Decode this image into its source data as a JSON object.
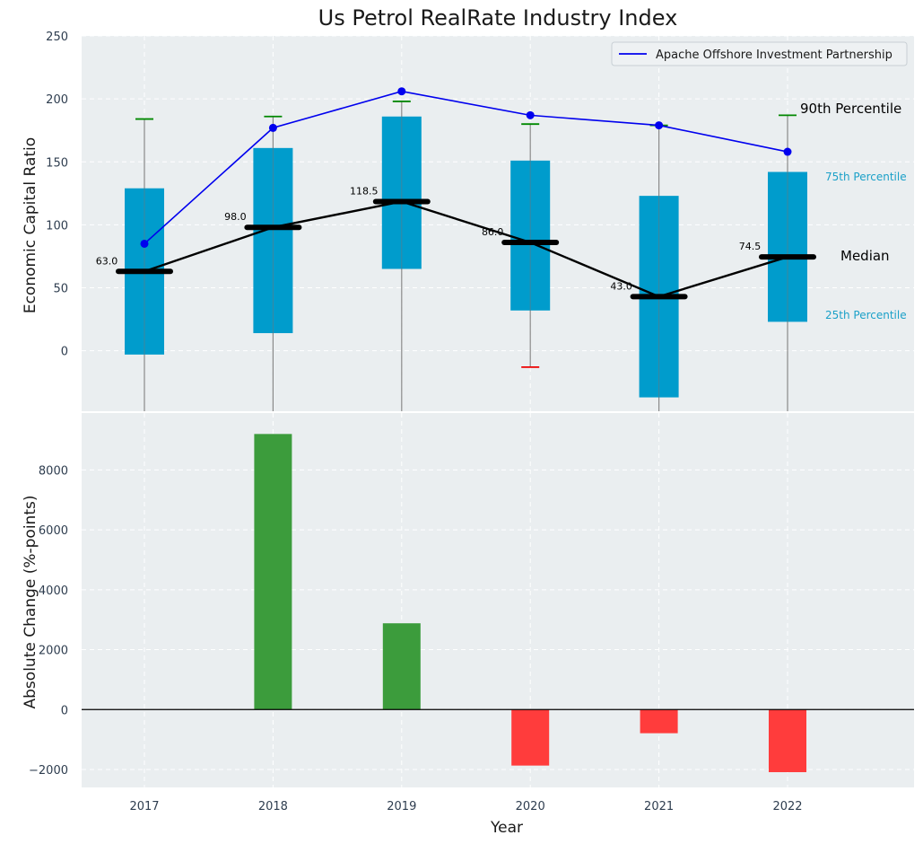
{
  "chart_data": [
    {
      "type": "box",
      "title": "Us Petrol RealRate Industry Index",
      "ylabel": "Economic Capital Ratio",
      "ylim": [
        -48,
        250
      ],
      "yticks": [
        0,
        50,
        100,
        150,
        200,
        250
      ],
      "categories": [
        "2017",
        "2018",
        "2019",
        "2020",
        "2021",
        "2022"
      ],
      "boxes": [
        {
          "q1": -3,
          "median": 63.0,
          "q3": 129,
          "p90": 184,
          "p10": null,
          "median_label": "63.0"
        },
        {
          "q1": 14,
          "median": 98.0,
          "q3": 161,
          "p90": 186,
          "p10": null,
          "median_label": "98.0"
        },
        {
          "q1": 65,
          "median": 118.5,
          "q3": 186,
          "p90": 198,
          "p10": null,
          "median_label": "118.5"
        },
        {
          "q1": 32,
          "median": 86.0,
          "q3": 151,
          "p90": 180,
          "p10": -13,
          "median_label": "86.0"
        },
        {
          "q1": -37,
          "median": 43.0,
          "q3": 123,
          "p90": 179,
          "p10": null,
          "median_label": "43.0"
        },
        {
          "q1": 23,
          "median": 74.5,
          "q3": 142,
          "p90": 187,
          "p10": null,
          "median_label": "74.5"
        }
      ],
      "series": [
        {
          "name": "Apache Offshore Investment Partnership",
          "color": "#0000ee",
          "values": [
            85,
            177,
            206,
            187,
            179,
            158
          ]
        }
      ],
      "annotations": {
        "p90": "90th Percentile",
        "p75": "75th Percentile",
        "median": "Median",
        "p25": "25th Percentile"
      },
      "colors": {
        "box": "#009ccc",
        "whisker_top": "#008800",
        "whisker_bottom": "#ee0000",
        "median": "#000000"
      }
    },
    {
      "type": "bar",
      "xlabel": "Year",
      "ylabel": "Absolute Change (%-points)",
      "ylim": [
        -2600,
        9900
      ],
      "yticks": [
        -2000,
        0,
        2000,
        4000,
        6000,
        8000
      ],
      "ytick_labels": [
        "−2000",
        "0",
        "2000",
        "4000",
        "6000",
        "8000"
      ],
      "categories": [
        "2017",
        "2018",
        "2019",
        "2020",
        "2021",
        "2022"
      ],
      "values": [
        0,
        9200,
        2880,
        -1870,
        -790,
        -2090
      ],
      "colors": {
        "positive": "#3c9c3c",
        "negative": "#ff3c3c"
      }
    }
  ]
}
